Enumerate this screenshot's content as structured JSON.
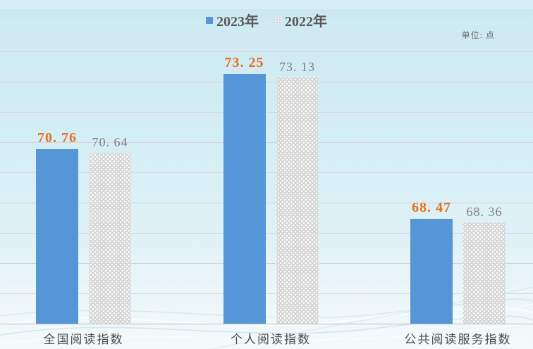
{
  "legend": [
    {
      "label": "2023年",
      "marker": "blue-square",
      "color": "#5596d6"
    },
    {
      "label": "2022年",
      "marker": "dotted-square",
      "color": "#d9d9d9"
    }
  ],
  "unit_label": "单位: 点",
  "colors": {
    "bar_2023": "#5596d6",
    "bar_2022_base": "#d7d7d7",
    "value_label_2023": "#e8701f",
    "value_label_2022": "#7e7e7e",
    "background_top": "#c9e8f1",
    "background_bottom": "#f4fafb",
    "gridline": "#d8d2d6"
  },
  "chart_data": {
    "type": "bar",
    "title": "",
    "categories": [
      "全国阅读指数",
      "个人阅读指数",
      "公共阅读服务指数"
    ],
    "series": [
      {
        "name": "2023年",
        "values": [
          70.76,
          73.25,
          68.47
        ]
      },
      {
        "name": "2022年",
        "values": [
          70.64,
          73.13,
          68.36
        ]
      }
    ],
    "unit": "点",
    "ylim": [
      65,
      74
    ],
    "gridline_step": 1,
    "axis_tick_labels_shown": false,
    "value_labels_shown": true,
    "grid": true,
    "legend_position": "top-center"
  }
}
